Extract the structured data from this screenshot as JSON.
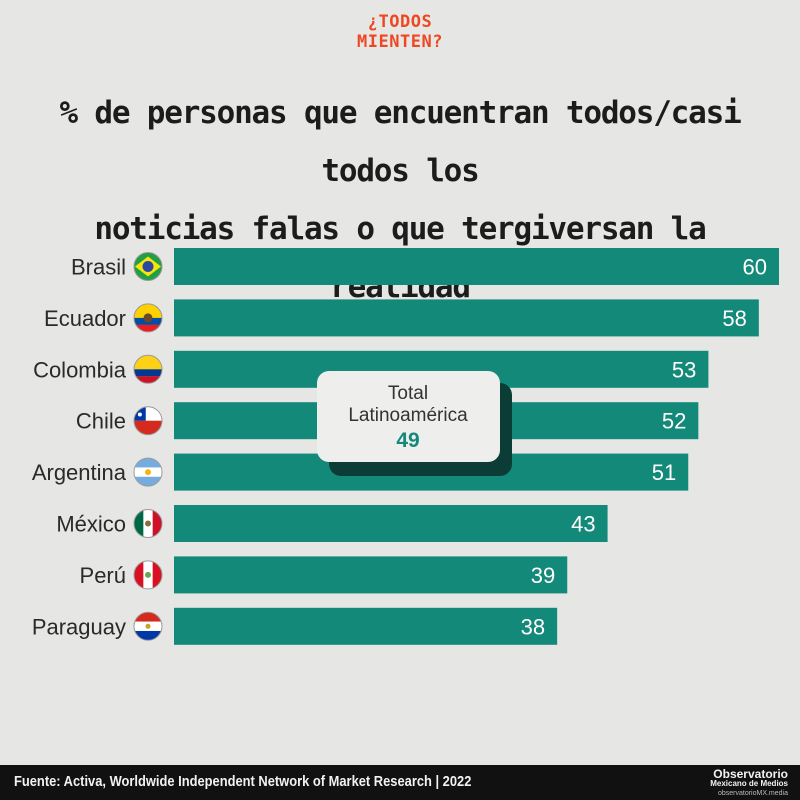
{
  "kicker": {
    "line1": "¿TODOS",
    "line2": "MIENTEN?"
  },
  "title": {
    "line1": "% de personas que encuentran todos/casi todos los",
    "line2": "noticias falas o que tergiversan la realidad"
  },
  "callout": {
    "line1": "Total",
    "line2": "Latinoamérica",
    "value": "49"
  },
  "footer": {
    "source": "Fuente: Activa, Worldwide Independent Network of Market Research  |  2022",
    "logo_line1": "Observatorio",
    "logo_line2": "Mexicano de Medios",
    "logo_line3": "observatorioMX.media"
  },
  "colors": {
    "bar": "#13897a",
    "background": "#e6e6e4",
    "accent": "#ee4823",
    "callout_value": "#13897a"
  },
  "chart_data": {
    "type": "bar",
    "orientation": "horizontal",
    "categories": [
      "Brasil",
      "Ecuador",
      "Colombia",
      "Chile",
      "Argentina",
      "México",
      "Perú",
      "Paraguay"
    ],
    "flags": [
      "brazil-flag",
      "ecuador-flag",
      "colombia-flag",
      "chile-flag",
      "argentina-flag",
      "mexico-flag",
      "peru-flag",
      "paraguay-flag"
    ],
    "values": [
      60,
      58,
      53,
      52,
      51,
      43,
      39,
      38
    ],
    "xlim": [
      0,
      60
    ],
    "annotation": {
      "label": "Total Latinoamérica",
      "value": 49
    }
  }
}
